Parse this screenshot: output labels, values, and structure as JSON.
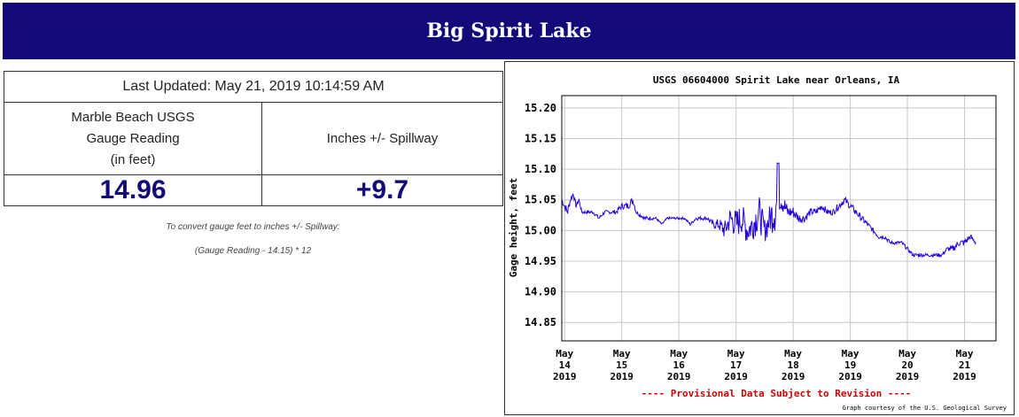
{
  "banner": {
    "title": "Big Spirit Lake"
  },
  "table": {
    "last_updated": "Last Updated: May 21, 2019 10:14:59 AM",
    "col1_header_lines": [
      "Marble Beach USGS",
      "Gauge Reading",
      "(in feet)"
    ],
    "col2_header": "Inches +/- Spillway",
    "gauge_value": "14.96",
    "spillway_value": "+9.7"
  },
  "note": {
    "line1": "To convert gauge feet to inches +/- Spillway:",
    "line2": "(Gauge Reading - 14.15) * 12"
  },
  "colors": {
    "banner": "#130a7a",
    "series": "#2200dd",
    "provisional": "#cc0000"
  },
  "chart_data": {
    "type": "line",
    "title": "USGS 06604000 Spirit Lake near Orleans, IA",
    "ylabel": "Gage height, feet",
    "xlabel": "",
    "ylim": [
      14.82,
      15.22
    ],
    "yticks": [
      14.85,
      14.9,
      14.95,
      15.0,
      15.05,
      15.1,
      15.15,
      15.2
    ],
    "ytick_labels": [
      "14.85",
      "14.90",
      "14.95",
      "15.00",
      "15.05",
      "15.10",
      "15.15",
      "15.20"
    ],
    "xlim": [
      13.95,
      21.55
    ],
    "xtick_positions": [
      14,
      15,
      16,
      17,
      18,
      19,
      20,
      21
    ],
    "xtick_labels": [
      [
        "May",
        "14",
        "2019"
      ],
      [
        "May",
        "15",
        "2019"
      ],
      [
        "May",
        "16",
        "2019"
      ],
      [
        "May",
        "17",
        "2019"
      ],
      [
        "May",
        "18",
        "2019"
      ],
      [
        "May",
        "19",
        "2019"
      ],
      [
        "May",
        "20",
        "2019"
      ],
      [
        "May",
        "21",
        "2019"
      ]
    ],
    "grid": true,
    "footer_note": "---- Provisional Data Subject to Revision ----",
    "credit": "Graph courtesy of the U.S. Geological Survey",
    "series": [
      {
        "x": [
          13.95,
          14.0,
          14.05,
          14.1,
          14.15,
          14.2,
          14.25,
          14.3,
          14.4,
          14.5,
          14.6,
          14.7,
          14.8,
          14.9,
          15.0,
          15.1,
          15.2,
          15.25,
          15.4,
          15.5,
          15.6,
          15.7,
          15.8,
          15.9,
          16.0,
          16.1,
          16.2,
          16.3,
          16.4,
          16.5,
          16.6,
          16.7,
          16.8,
          16.9,
          17.0,
          17.1,
          17.2,
          17.3,
          17.4,
          17.5,
          17.6,
          17.7,
          17.75,
          17.8,
          17.9,
          18.0,
          18.1,
          18.2,
          18.3,
          18.4,
          18.5,
          18.6,
          18.7,
          18.8,
          18.9,
          19.0,
          19.1,
          19.2,
          19.3,
          19.4,
          19.5,
          19.6,
          19.7,
          19.8,
          19.9,
          20.0,
          20.1,
          20.2,
          20.3,
          20.4,
          20.5,
          20.6,
          20.7,
          20.8,
          20.9,
          21.0,
          21.1,
          21.2
        ],
        "y": [
          15.05,
          15.04,
          15.03,
          15.05,
          15.06,
          15.04,
          15.05,
          15.03,
          15.03,
          15.03,
          15.02,
          15.03,
          15.03,
          15.03,
          15.04,
          15.04,
          15.05,
          15.03,
          15.02,
          15.02,
          15.02,
          15.01,
          15.02,
          15.02,
          15.02,
          15.02,
          15.01,
          15.02,
          15.02,
          15.02,
          15.01,
          15.01,
          15.0,
          15.02,
          15.01,
          15.02,
          15.0,
          15.01,
          15.03,
          15.0,
          15.02,
          15.04,
          15.06,
          15.05,
          15.03,
          15.03,
          15.02,
          15.02,
          15.03,
          15.03,
          15.04,
          15.03,
          15.03,
          15.04,
          15.05,
          15.04,
          15.03,
          15.02,
          15.01,
          15.0,
          14.99,
          14.99,
          14.98,
          14.98,
          14.98,
          14.97,
          14.96,
          14.96,
          14.96,
          14.96,
          14.96,
          14.96,
          14.97,
          14.97,
          14.98,
          14.98,
          14.99,
          14.98
        ],
        "noise": [
          0.005,
          0.007,
          0.007,
          0.005,
          0.004,
          0.004,
          0.004,
          0.003,
          0.003,
          0.003,
          0.003,
          0.003,
          0.003,
          0.004,
          0.005,
          0.006,
          0.007,
          0.003,
          0.003,
          0.003,
          0.002,
          0.002,
          0.002,
          0.002,
          0.002,
          0.002,
          0.002,
          0.003,
          0.003,
          0.003,
          0.006,
          0.01,
          0.015,
          0.02,
          0.025,
          0.025,
          0.025,
          0.025,
          0.03,
          0.02,
          0.025,
          0.045,
          0.03,
          0.02,
          0.012,
          0.01,
          0.008,
          0.007,
          0.006,
          0.006,
          0.006,
          0.005,
          0.005,
          0.006,
          0.006,
          0.006,
          0.006,
          0.005,
          0.005,
          0.004,
          0.004,
          0.004,
          0.003,
          0.003,
          0.003,
          0.003,
          0.003,
          0.003,
          0.003,
          0.003,
          0.003,
          0.003,
          0.004,
          0.005,
          0.006,
          0.006,
          0.005,
          0.004
        ]
      }
    ]
  }
}
